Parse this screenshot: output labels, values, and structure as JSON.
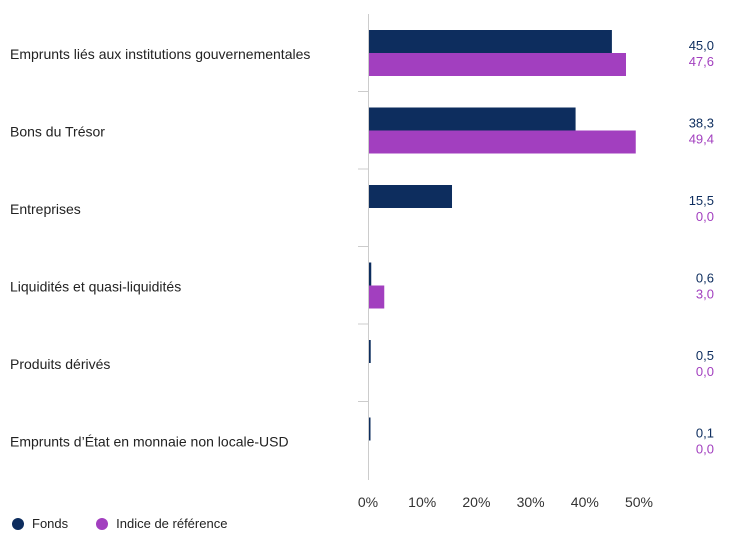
{
  "chart_data": {
    "type": "bar",
    "orientation": "horizontal",
    "categories": [
      "Emprunts liés aux institutions gouvernementales",
      "Bons du Trésor",
      "Entreprises",
      "Liquidités et quasi-liquidités",
      "Produits dérivés",
      "Emprunts d’État en monnaie non locale-USD"
    ],
    "series": [
      {
        "name": "Fonds",
        "color": "#0d2d5e",
        "values": [
          45.0,
          38.3,
          15.5,
          0.6,
          0.5,
          0.1
        ],
        "value_labels": [
          "45,0",
          "38,3",
          "15,5",
          "0,6",
          "0,5",
          "0,1"
        ]
      },
      {
        "name": "Indice de référence",
        "color": "#a23fbf",
        "values": [
          47.6,
          49.4,
          0.0,
          3.0,
          0.0,
          0.0
        ],
        "value_labels": [
          "47,6",
          "49,4",
          "0,0",
          "3,0",
          "0,0",
          "0,0"
        ]
      }
    ],
    "xlim": [
      0,
      60
    ],
    "xticks": [
      0,
      10,
      20,
      30,
      40,
      50
    ],
    "xtick_labels": [
      "0%",
      "10%",
      "20%",
      "30%",
      "40%",
      "50%"
    ],
    "grid": false,
    "legend_position": "bottom-left"
  }
}
